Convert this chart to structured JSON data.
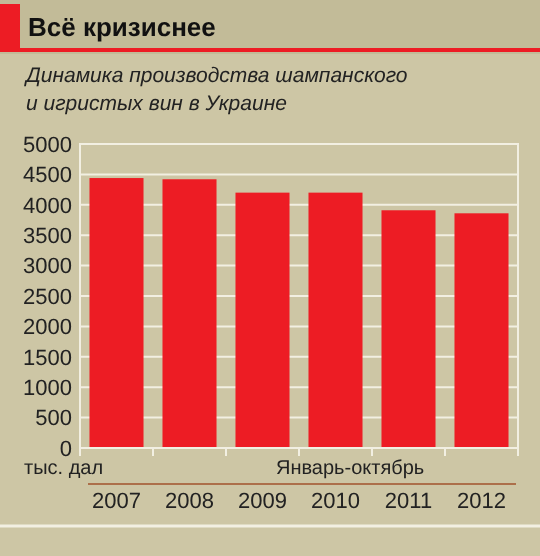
{
  "chart_data": {
    "type": "bar",
    "title": "Всё кризиснее",
    "subtitle": "Динамика производства шампанского\nи игристых вин в Украине",
    "ylabel": "тыс. дал",
    "annotations": [
      "Январь-октябрь"
    ],
    "categories": [
      "2007",
      "2008",
      "2009",
      "2010",
      "2011",
      "2012"
    ],
    "values": [
      4440,
      4420,
      4200,
      4200,
      3910,
      3860
    ],
    "color": "#ed1c24",
    "ylim": [
      0,
      5000
    ],
    "yticks": [
      0,
      500,
      1000,
      1500,
      2000,
      2500,
      3000,
      3500,
      4000,
      4500,
      5000
    ],
    "grid": "y"
  }
}
